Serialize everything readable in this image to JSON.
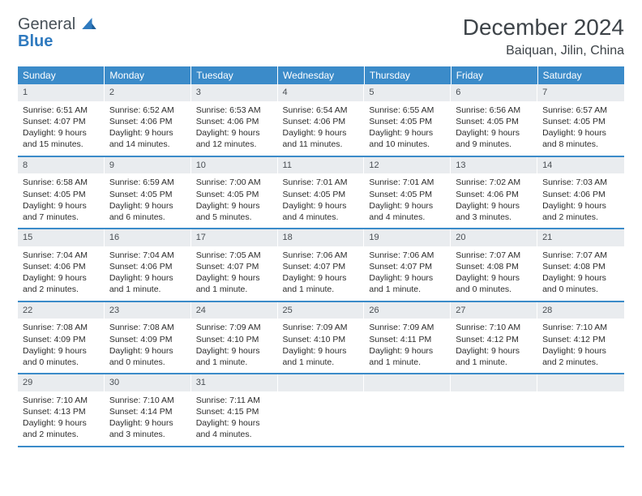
{
  "logo": {
    "line1": "General",
    "line2": "Blue"
  },
  "title": "December 2024",
  "location": "Baiquan, Jilin, China",
  "colors": {
    "header_bg": "#3b8bc9",
    "header_fg": "#ffffff",
    "daynum_bg": "#e9ecef",
    "rule": "#3b8bc9",
    "text": "#2c2c2c",
    "logo_gray": "#475057",
    "logo_blue": "#2f7abf"
  },
  "weekdays": [
    "Sunday",
    "Monday",
    "Tuesday",
    "Wednesday",
    "Thursday",
    "Friday",
    "Saturday"
  ],
  "weeks": [
    [
      {
        "n": "1",
        "sr": "Sunrise: 6:51 AM",
        "ss": "Sunset: 4:07 PM",
        "d1": "Daylight: 9 hours",
        "d2": "and 15 minutes."
      },
      {
        "n": "2",
        "sr": "Sunrise: 6:52 AM",
        "ss": "Sunset: 4:06 PM",
        "d1": "Daylight: 9 hours",
        "d2": "and 14 minutes."
      },
      {
        "n": "3",
        "sr": "Sunrise: 6:53 AM",
        "ss": "Sunset: 4:06 PM",
        "d1": "Daylight: 9 hours",
        "d2": "and 12 minutes."
      },
      {
        "n": "4",
        "sr": "Sunrise: 6:54 AM",
        "ss": "Sunset: 4:06 PM",
        "d1": "Daylight: 9 hours",
        "d2": "and 11 minutes."
      },
      {
        "n": "5",
        "sr": "Sunrise: 6:55 AM",
        "ss": "Sunset: 4:05 PM",
        "d1": "Daylight: 9 hours",
        "d2": "and 10 minutes."
      },
      {
        "n": "6",
        "sr": "Sunrise: 6:56 AM",
        "ss": "Sunset: 4:05 PM",
        "d1": "Daylight: 9 hours",
        "d2": "and 9 minutes."
      },
      {
        "n": "7",
        "sr": "Sunrise: 6:57 AM",
        "ss": "Sunset: 4:05 PM",
        "d1": "Daylight: 9 hours",
        "d2": "and 8 minutes."
      }
    ],
    [
      {
        "n": "8",
        "sr": "Sunrise: 6:58 AM",
        "ss": "Sunset: 4:05 PM",
        "d1": "Daylight: 9 hours",
        "d2": "and 7 minutes."
      },
      {
        "n": "9",
        "sr": "Sunrise: 6:59 AM",
        "ss": "Sunset: 4:05 PM",
        "d1": "Daylight: 9 hours",
        "d2": "and 6 minutes."
      },
      {
        "n": "10",
        "sr": "Sunrise: 7:00 AM",
        "ss": "Sunset: 4:05 PM",
        "d1": "Daylight: 9 hours",
        "d2": "and 5 minutes."
      },
      {
        "n": "11",
        "sr": "Sunrise: 7:01 AM",
        "ss": "Sunset: 4:05 PM",
        "d1": "Daylight: 9 hours",
        "d2": "and 4 minutes."
      },
      {
        "n": "12",
        "sr": "Sunrise: 7:01 AM",
        "ss": "Sunset: 4:05 PM",
        "d1": "Daylight: 9 hours",
        "d2": "and 4 minutes."
      },
      {
        "n": "13",
        "sr": "Sunrise: 7:02 AM",
        "ss": "Sunset: 4:06 PM",
        "d1": "Daylight: 9 hours",
        "d2": "and 3 minutes."
      },
      {
        "n": "14",
        "sr": "Sunrise: 7:03 AM",
        "ss": "Sunset: 4:06 PM",
        "d1": "Daylight: 9 hours",
        "d2": "and 2 minutes."
      }
    ],
    [
      {
        "n": "15",
        "sr": "Sunrise: 7:04 AM",
        "ss": "Sunset: 4:06 PM",
        "d1": "Daylight: 9 hours",
        "d2": "and 2 minutes."
      },
      {
        "n": "16",
        "sr": "Sunrise: 7:04 AM",
        "ss": "Sunset: 4:06 PM",
        "d1": "Daylight: 9 hours",
        "d2": "and 1 minute."
      },
      {
        "n": "17",
        "sr": "Sunrise: 7:05 AM",
        "ss": "Sunset: 4:07 PM",
        "d1": "Daylight: 9 hours",
        "d2": "and 1 minute."
      },
      {
        "n": "18",
        "sr": "Sunrise: 7:06 AM",
        "ss": "Sunset: 4:07 PM",
        "d1": "Daylight: 9 hours",
        "d2": "and 1 minute."
      },
      {
        "n": "19",
        "sr": "Sunrise: 7:06 AM",
        "ss": "Sunset: 4:07 PM",
        "d1": "Daylight: 9 hours",
        "d2": "and 1 minute."
      },
      {
        "n": "20",
        "sr": "Sunrise: 7:07 AM",
        "ss": "Sunset: 4:08 PM",
        "d1": "Daylight: 9 hours",
        "d2": "and 0 minutes."
      },
      {
        "n": "21",
        "sr": "Sunrise: 7:07 AM",
        "ss": "Sunset: 4:08 PM",
        "d1": "Daylight: 9 hours",
        "d2": "and 0 minutes."
      }
    ],
    [
      {
        "n": "22",
        "sr": "Sunrise: 7:08 AM",
        "ss": "Sunset: 4:09 PM",
        "d1": "Daylight: 9 hours",
        "d2": "and 0 minutes."
      },
      {
        "n": "23",
        "sr": "Sunrise: 7:08 AM",
        "ss": "Sunset: 4:09 PM",
        "d1": "Daylight: 9 hours",
        "d2": "and 0 minutes."
      },
      {
        "n": "24",
        "sr": "Sunrise: 7:09 AM",
        "ss": "Sunset: 4:10 PM",
        "d1": "Daylight: 9 hours",
        "d2": "and 1 minute."
      },
      {
        "n": "25",
        "sr": "Sunrise: 7:09 AM",
        "ss": "Sunset: 4:10 PM",
        "d1": "Daylight: 9 hours",
        "d2": "and 1 minute."
      },
      {
        "n": "26",
        "sr": "Sunrise: 7:09 AM",
        "ss": "Sunset: 4:11 PM",
        "d1": "Daylight: 9 hours",
        "d2": "and 1 minute."
      },
      {
        "n": "27",
        "sr": "Sunrise: 7:10 AM",
        "ss": "Sunset: 4:12 PM",
        "d1": "Daylight: 9 hours",
        "d2": "and 1 minute."
      },
      {
        "n": "28",
        "sr": "Sunrise: 7:10 AM",
        "ss": "Sunset: 4:12 PM",
        "d1": "Daylight: 9 hours",
        "d2": "and 2 minutes."
      }
    ],
    [
      {
        "n": "29",
        "sr": "Sunrise: 7:10 AM",
        "ss": "Sunset: 4:13 PM",
        "d1": "Daylight: 9 hours",
        "d2": "and 2 minutes."
      },
      {
        "n": "30",
        "sr": "Sunrise: 7:10 AM",
        "ss": "Sunset: 4:14 PM",
        "d1": "Daylight: 9 hours",
        "d2": "and 3 minutes."
      },
      {
        "n": "31",
        "sr": "Sunrise: 7:11 AM",
        "ss": "Sunset: 4:15 PM",
        "d1": "Daylight: 9 hours",
        "d2": "and 4 minutes."
      },
      {
        "empty": true
      },
      {
        "empty": true
      },
      {
        "empty": true
      },
      {
        "empty": true
      }
    ]
  ]
}
